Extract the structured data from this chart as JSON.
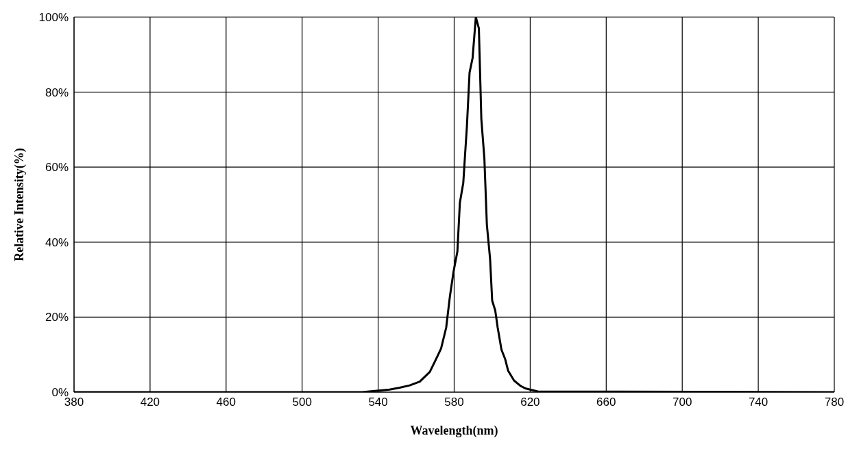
{
  "chart_data": {
    "type": "line",
    "xlabel": "Wavelength(nm)",
    "ylabel": "Relative  Intensity(%)",
    "x": [
      380,
      531.5,
      546,
      551.3,
      556.6,
      561.9,
      567.2,
      569.8,
      573.1,
      575.8,
      577.8,
      579.7,
      581.7,
      583,
      584.8,
      585.7,
      586.7,
      588.1,
      589.7,
      591.4,
      593,
      594.3,
      595.9,
      597.2,
      598.9,
      600,
      601.6,
      602.9,
      604.9,
      606.9,
      608.4,
      611.5,
      614.8,
      617.4,
      620,
      624,
      780
    ],
    "series": [
      {
        "color": "#000000",
        "values": [
          0,
          0,
          0.7,
          1.2,
          1.8,
          2.8,
          5.4,
          8.1,
          11.6,
          17.2,
          25.7,
          32.2,
          37.5,
          50.5,
          55.8,
          63,
          70.8,
          85.2,
          89.1,
          100,
          97,
          72.8,
          62.3,
          44.7,
          35.5,
          24.4,
          21.8,
          17.2,
          11.3,
          8.7,
          5.7,
          3.1,
          1.7,
          1,
          0.7,
          0.2,
          0
        ]
      }
    ],
    "xlim": [
      380,
      780
    ],
    "xticks": [
      380,
      420,
      460,
      500,
      540,
      580,
      620,
      660,
      700,
      740,
      780
    ],
    "ylim": [
      0,
      100
    ],
    "yticks": [
      {
        "value": 0,
        "label": "0%"
      },
      {
        "value": 20,
        "label": "20%"
      },
      {
        "value": 40,
        "label": "40%"
      },
      {
        "value": 60,
        "label": "60%"
      },
      {
        "value": 80,
        "label": "80%"
      },
      {
        "value": 100,
        "label": "100%"
      }
    ],
    "grid": true,
    "legend": false,
    "marker": "none",
    "line_style": "solid"
  }
}
